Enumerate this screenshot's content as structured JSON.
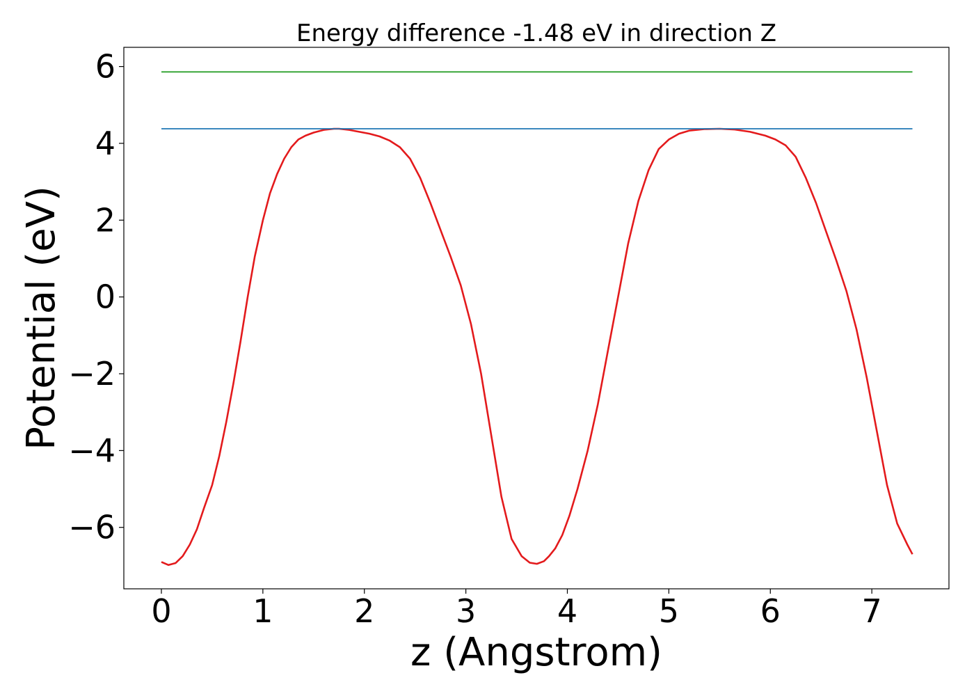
{
  "chart_data": {
    "type": "line",
    "title": "Energy difference -1.48 eV in direction Z",
    "xlabel": "z (Angstrom)",
    "ylabel": "Potential (eV)",
    "xlim": [
      -0.37,
      7.76
    ],
    "ylim": [
      -7.6,
      6.5
    ],
    "xticks": [
      0,
      1,
      2,
      3,
      4,
      5,
      6,
      7
    ],
    "yticks": [
      -6,
      -4,
      -2,
      0,
      2,
      4,
      6
    ],
    "yticklabels": [
      "−6",
      "−4",
      "−2",
      "0",
      "2",
      "4",
      "6"
    ],
    "grid": false,
    "legend": "none",
    "series": [
      {
        "color": "#e31a1c",
        "x": [
          0,
          0.07,
          0.14,
          0.21,
          0.28,
          0.35,
          0.42,
          0.5,
          0.57,
          0.64,
          0.71,
          0.78,
          0.85,
          0.92,
          1.0,
          1.07,
          1.14,
          1.21,
          1.28,
          1.35,
          1.42,
          1.5,
          1.6,
          1.7,
          1.75,
          1.85,
          1.95,
          2.05,
          2.15,
          2.25,
          2.35,
          2.45,
          2.55,
          2.65,
          2.75,
          2.85,
          2.95,
          3.05,
          3.15,
          3.25,
          3.35,
          3.45,
          3.55,
          3.63,
          3.7,
          3.77,
          3.82,
          3.88,
          3.95,
          4.02,
          4.1,
          4.2,
          4.3,
          4.4,
          4.5,
          4.6,
          4.7,
          4.8,
          4.9,
          5.0,
          5.1,
          5.2,
          5.35,
          5.5,
          5.65,
          5.8,
          5.95,
          6.05,
          6.15,
          6.25,
          6.35,
          6.45,
          6.55,
          6.65,
          6.75,
          6.85,
          6.95,
          7.05,
          7.15,
          7.25,
          7.35,
          7.4
        ],
        "y": [
          -6.9,
          -6.98,
          -6.93,
          -6.75,
          -6.45,
          -6.05,
          -5.5,
          -4.9,
          -4.15,
          -3.25,
          -2.25,
          -1.15,
          0.0,
          1.05,
          2.0,
          2.7,
          3.2,
          3.6,
          3.9,
          4.1,
          4.2,
          4.28,
          4.35,
          4.38,
          4.38,
          4.35,
          4.3,
          4.25,
          4.18,
          4.07,
          3.9,
          3.6,
          3.1,
          2.45,
          1.75,
          1.05,
          0.3,
          -0.7,
          -2.0,
          -3.6,
          -5.2,
          -6.3,
          -6.75,
          -6.92,
          -6.95,
          -6.88,
          -6.75,
          -6.55,
          -6.2,
          -5.7,
          -5.0,
          -4.0,
          -2.8,
          -1.4,
          0.0,
          1.4,
          2.5,
          3.3,
          3.85,
          4.1,
          4.25,
          4.33,
          4.37,
          4.38,
          4.36,
          4.3,
          4.2,
          4.1,
          3.95,
          3.65,
          3.1,
          2.45,
          1.7,
          0.95,
          0.15,
          -0.85,
          -2.1,
          -3.5,
          -4.9,
          -5.9,
          -6.45,
          -6.7
        ]
      },
      {
        "color": "#1f77b4",
        "x": [
          0,
          7.4
        ],
        "y": [
          4.38,
          4.38
        ]
      },
      {
        "color": "#2ca02c",
        "x": [
          0,
          7.4
        ],
        "y": [
          5.86,
          5.86
        ]
      }
    ]
  }
}
